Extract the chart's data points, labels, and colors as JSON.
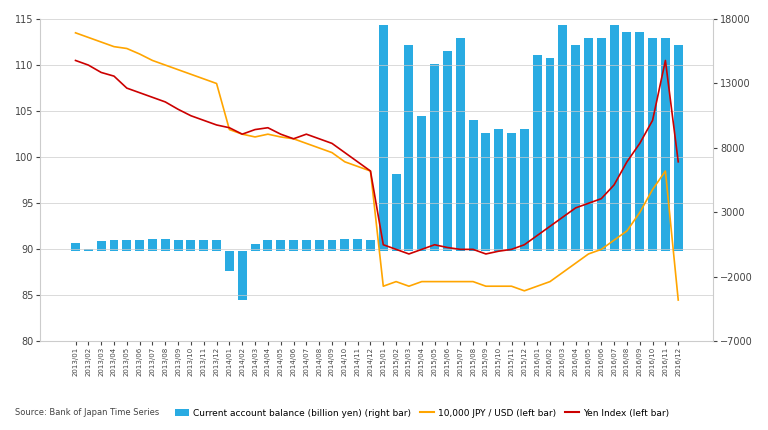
{
  "dates": [
    "2013/01",
    "2013/02",
    "2013/03",
    "2013/04",
    "2013/05",
    "2013/06",
    "2013/07",
    "2013/08",
    "2013/09",
    "2013/10",
    "2013/11",
    "2013/12",
    "2014/01",
    "2014/02",
    "2014/03",
    "2014/04",
    "2014/05",
    "2014/06",
    "2014/07",
    "2014/08",
    "2014/09",
    "2014/10",
    "2014/11",
    "2014/12",
    "2015/01",
    "2015/02",
    "2015/03",
    "2015/04",
    "2015/05",
    "2015/06",
    "2015/07",
    "2015/08",
    "2015/09",
    "2015/10",
    "2015/11",
    "2015/12",
    "2016/01",
    "2016/02",
    "2016/03",
    "2016/04",
    "2016/05",
    "2016/06",
    "2016/07",
    "2016/08",
    "2016/09",
    "2016/10",
    "2016/11",
    "2016/12"
  ],
  "current_account_bn_yen": [
    630,
    200,
    800,
    870,
    900,
    900,
    960,
    950,
    870,
    900,
    870,
    870,
    -1500,
    -3800,
    550,
    850,
    870,
    870,
    890,
    880,
    900,
    930,
    910,
    890,
    17500,
    6000,
    16000,
    10500,
    14500,
    15500,
    16500,
    10200,
    9200,
    9500,
    9200,
    9500,
    15200,
    15000,
    17500,
    16000,
    16500,
    16500,
    17500,
    17000,
    17000,
    16500,
    16500,
    16000
  ],
  "jpy_usd_left": [
    113.5,
    113.0,
    112.5,
    112.0,
    111.8,
    111.2,
    110.5,
    110.0,
    109.5,
    109.0,
    108.5,
    108.0,
    103.0,
    102.5,
    102.2,
    102.5,
    102.2,
    102.0,
    101.5,
    101.0,
    100.5,
    99.5,
    99.0,
    98.5,
    86.0,
    86.5,
    86.0,
    86.5,
    86.5,
    86.5,
    86.5,
    86.5,
    86.0,
    86.0,
    86.0,
    85.5,
    86.0,
    86.5,
    87.5,
    88.5,
    89.5,
    90.0,
    91.0,
    92.0,
    94.0,
    96.5,
    98.5,
    84.5
  ],
  "yen_index_left": [
    110.5,
    110.0,
    109.2,
    108.8,
    107.5,
    107.0,
    106.5,
    106.0,
    105.2,
    104.5,
    104.0,
    103.5,
    103.2,
    102.5,
    103.0,
    103.2,
    102.5,
    102.0,
    102.5,
    102.0,
    101.5,
    100.5,
    99.5,
    98.5,
    90.5,
    90.0,
    89.5,
    90.0,
    90.5,
    90.2,
    90.0,
    90.0,
    89.5,
    89.8,
    90.0,
    90.5,
    91.5,
    92.5,
    93.5,
    94.5,
    95.0,
    95.5,
    97.0,
    99.5,
    101.5,
    104.0,
    110.5,
    99.5
  ],
  "bar_color": "#29ABE2",
  "line_orange_color": "#FFA500",
  "line_red_color": "#CC0000",
  "background_color": "#FFFFFF",
  "grid_color": "#CCCCCC",
  "left_ylim": [
    80,
    115
  ],
  "right_ylim": [
    -7000,
    18000
  ],
  "left_yticks": [
    80,
    85,
    90,
    95,
    100,
    105,
    110,
    115
  ],
  "right_yticks": [
    -7000,
    -2000,
    3000,
    8000,
    13000,
    18000
  ],
  "source_text": "Source: Bank of Japan Time Series",
  "legend_entries": [
    "Current account balance (billion yen) (right bar)",
    "10,000 JPY / USD (left bar)",
    "Yen Index (left bar)"
  ]
}
